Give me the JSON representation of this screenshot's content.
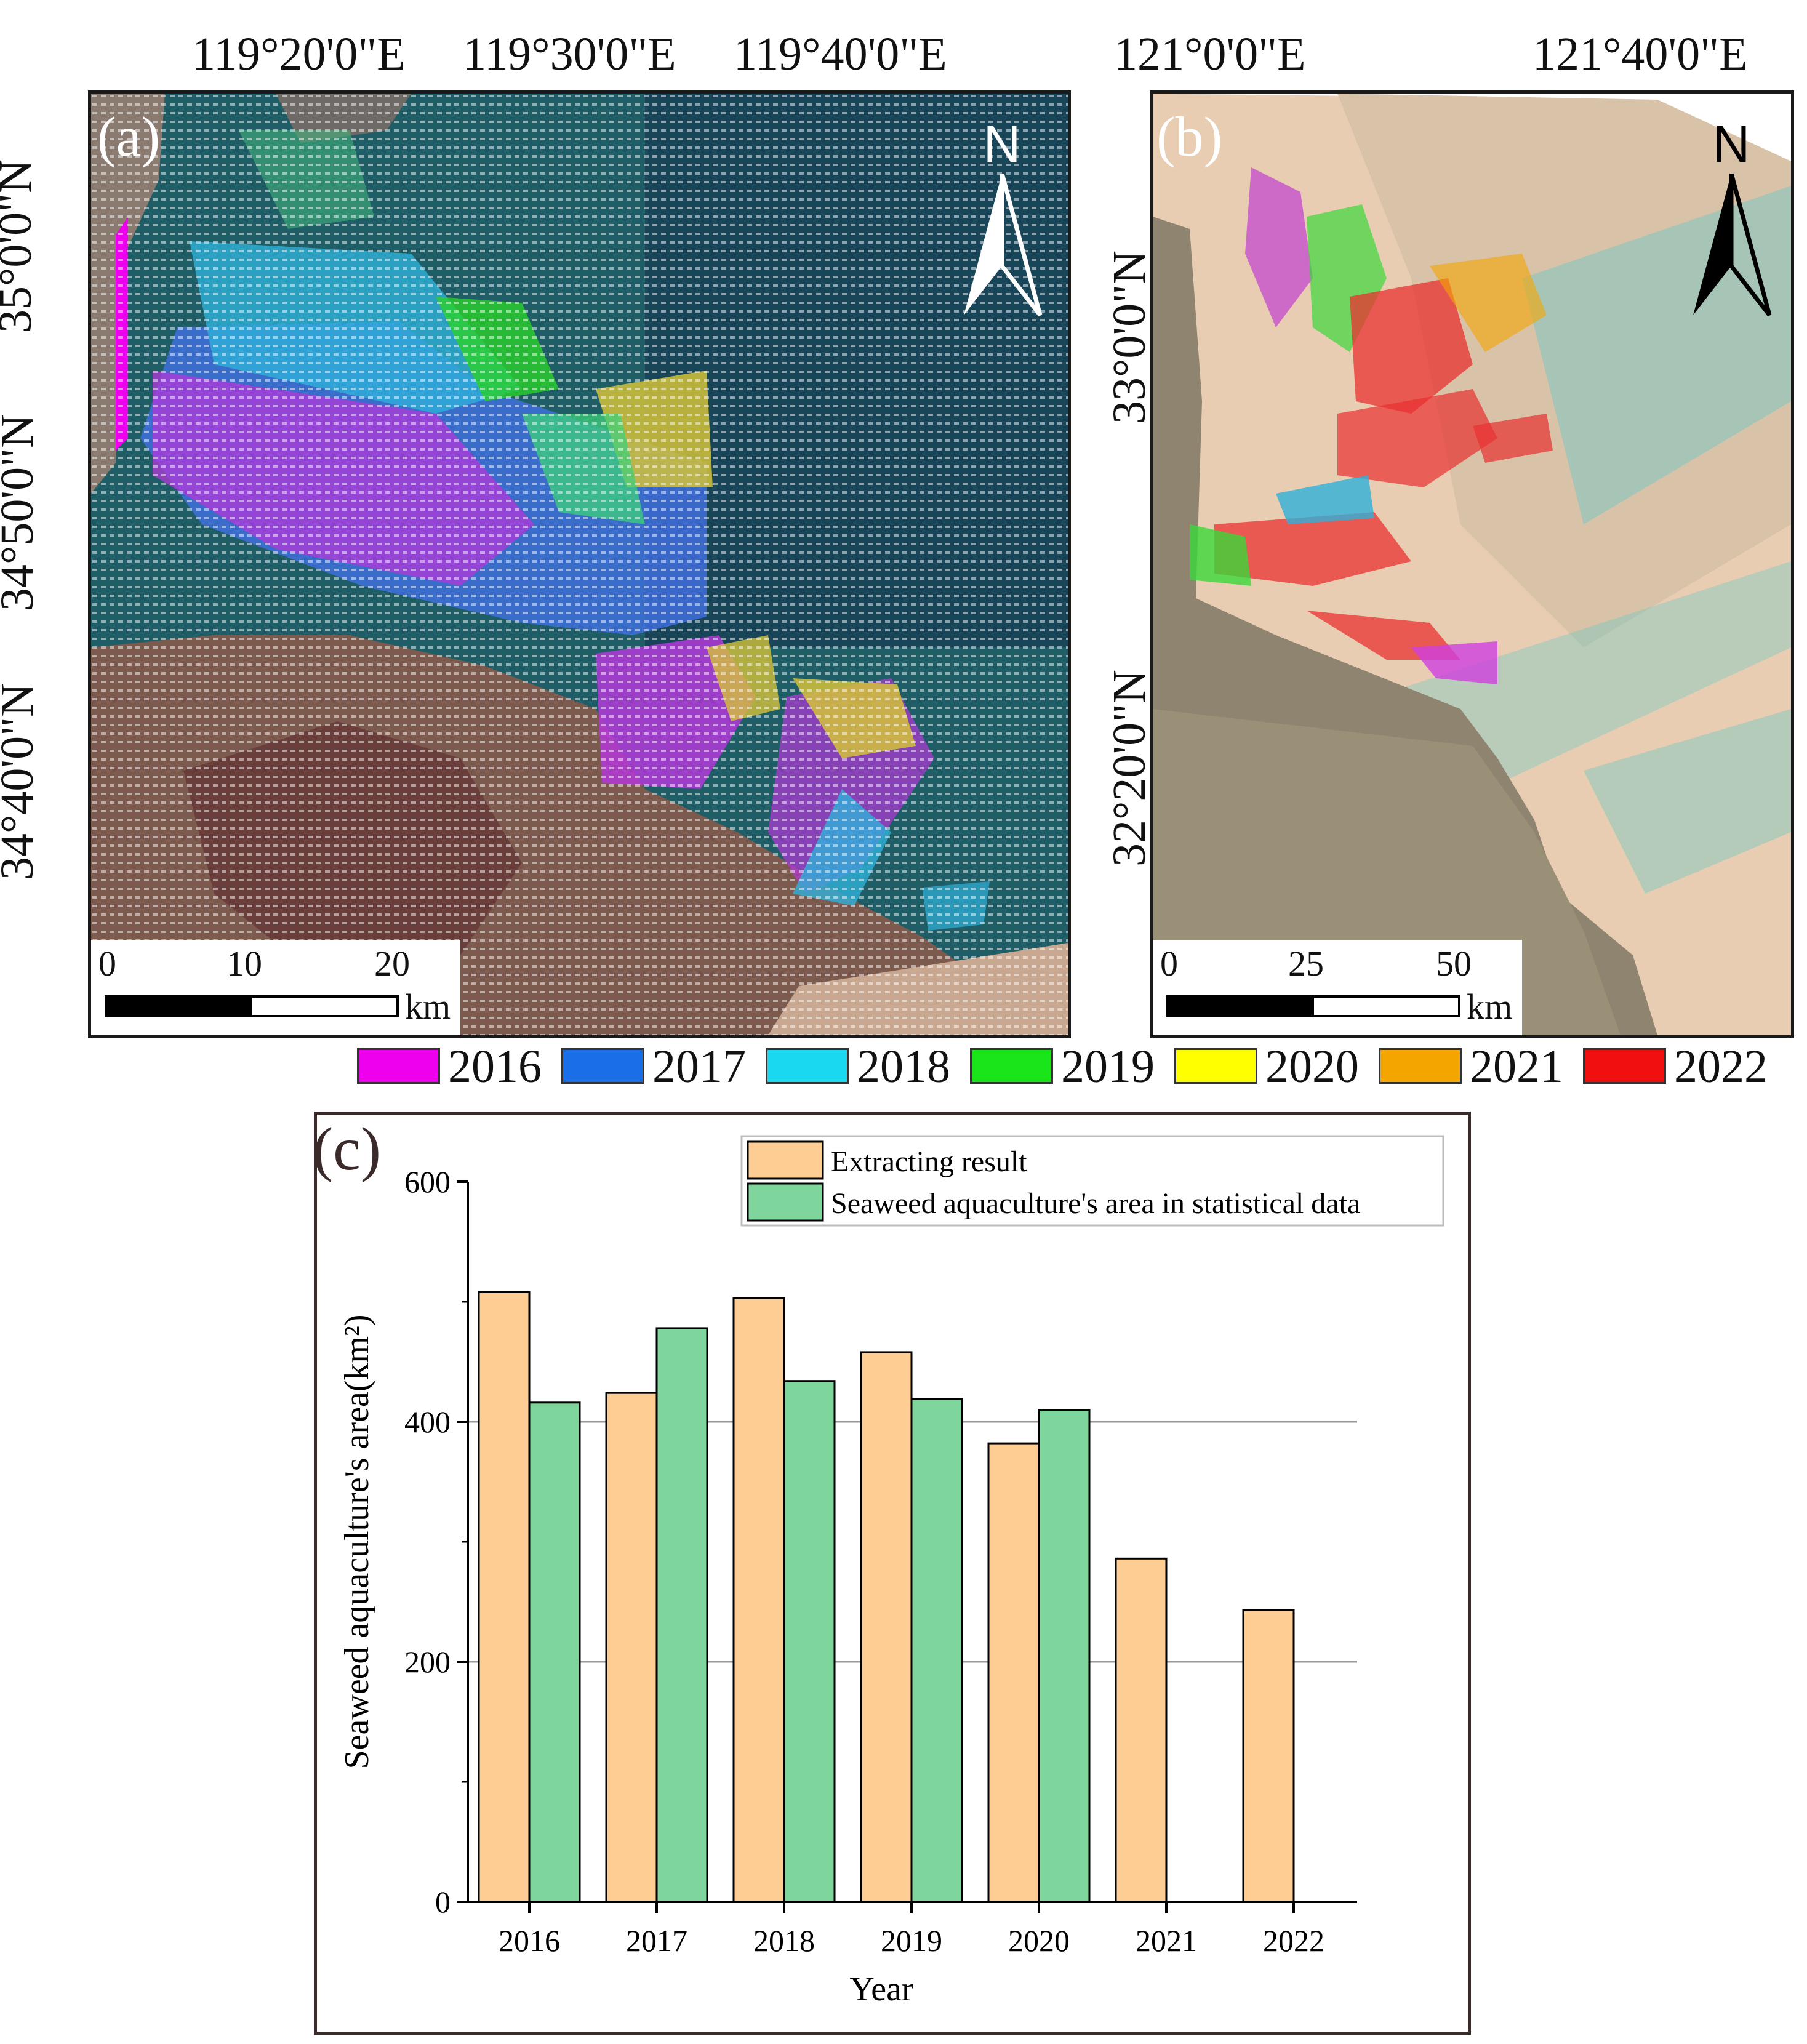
{
  "panel_a": {
    "label": "(a)",
    "lon_ticks": [
      "119°20'0\"E",
      "119°30'0\"E",
      "119°40'0\"E"
    ],
    "lat_ticks": [
      "35°0'0\"N",
      "34°50'0\"N",
      "34°40'0\"N"
    ],
    "north": "N",
    "scale": {
      "labels": [
        "0",
        "10",
        "20"
      ],
      "unit": "km"
    }
  },
  "panel_b": {
    "label": "(b)",
    "lon_ticks": [
      "121°0'0\"E",
      "121°40'0\"E"
    ],
    "lat_ticks": [
      "33°0'0\"N",
      "32°20'0\"N"
    ],
    "north": "N",
    "scale": {
      "labels": [
        "0",
        "25",
        "50"
      ],
      "unit": "km"
    }
  },
  "year_legend": [
    {
      "label": "2016",
      "color": "#ee00ee"
    },
    {
      "label": "2017",
      "color": "#1a6fe8"
    },
    {
      "label": "2018",
      "color": "#19d8f0"
    },
    {
      "label": "2019",
      "color": "#19e619"
    },
    {
      "label": "2020",
      "color": "#ffff00"
    },
    {
      "label": "2021",
      "color": "#f5a500"
    },
    {
      "label": "2022",
      "color": "#f01010"
    }
  ],
  "chart_data": {
    "type": "bar",
    "panel_label": "(c)",
    "categories": [
      "2016",
      "2017",
      "2018",
      "2019",
      "2020",
      "2021",
      "2022"
    ],
    "series": [
      {
        "name": "Extracting result",
        "color": "#fdcd93",
        "values": [
          508,
          424,
          503,
          458,
          382,
          286,
          243
        ]
      },
      {
        "name": "Seaweed aquaculture's area in statistical data",
        "color": "#7fd69c",
        "values": [
          416,
          478,
          434,
          419,
          410,
          null,
          null
        ]
      }
    ],
    "xlabel": "Year",
    "ylabel": "Seaweed aquaculture's area(km²)",
    "ylim": [
      0,
      600
    ],
    "yticks": [
      0,
      200,
      400,
      600
    ],
    "yticks_labels": [
      "0",
      "200",
      "400",
      "600"
    ],
    "grid_values": [
      200,
      400
    ],
    "legend_position": "top-right"
  }
}
